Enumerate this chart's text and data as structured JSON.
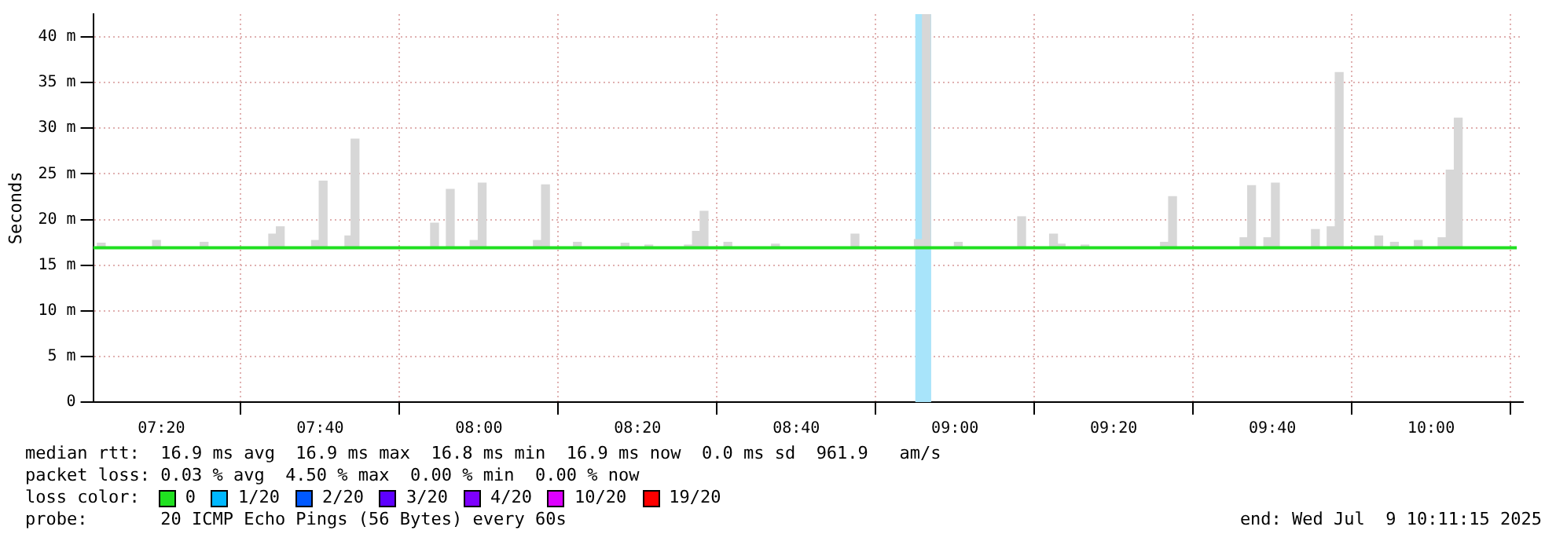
{
  "chart_data": {
    "type": "bar",
    "ylabel": "Seconds",
    "legend_title": "loss color:",
    "legend": "bottom",
    "grid": true,
    "xlim": [
      7.19,
      10.193
    ],
    "xticks": [
      {
        "value": 7.3333,
        "label": "07:20"
      },
      {
        "value": 7.6667,
        "label": "07:40"
      },
      {
        "value": 8,
        "label": "08:00"
      },
      {
        "value": 8.3333,
        "label": "08:20"
      },
      {
        "value": 8.6667,
        "label": "08:40"
      },
      {
        "value": 9,
        "label": "09:00"
      },
      {
        "value": 9.3333,
        "label": "09:20"
      },
      {
        "value": 9.6667,
        "label": "09:40"
      },
      {
        "value": 10,
        "label": "10:00"
      }
    ],
    "ylim": [
      0,
      42.5
    ],
    "yticks": [
      0,
      {
        "value": 5,
        "label": "5 m"
      },
      {
        "value": 10,
        "label": "10 m"
      },
      {
        "value": 15,
        "label": "15 m"
      },
      {
        "value": 20,
        "label": "20 m"
      },
      {
        "value": 25,
        "label": "25 m"
      },
      {
        "value": 30,
        "label": "30 m"
      },
      {
        "value": 35,
        "label": "35 m"
      },
      {
        "value": 40,
        "label": "40 m"
      }
    ],
    "bands": [
      {
        "axis": "x",
        "from": 8.9167,
        "to": 8.95,
        "color": "#a8e4fa"
      }
    ],
    "series": [
      {
        "color": "#d7d7d7",
        "base": [
          16.9,
          16.9,
          16.9,
          16.9,
          16.9,
          16.9,
          16.9,
          16.9,
          16.9,
          16.9,
          16.9,
          16.9,
          16.9,
          16.9,
          16.9,
          16.9,
          16.9,
          16.9,
          16.9,
          16.9,
          16.9,
          16.9,
          16.9,
          16.9,
          16.9,
          16.9,
          16.9,
          16.9,
          16.9,
          16.9,
          16.9,
          16.9,
          16.9,
          16.9,
          16.9,
          16.9,
          16.9,
          16.9,
          16.9,
          16.9,
          16.9,
          16.9,
          16.9,
          16.9,
          16.9,
          16.9
        ],
        "x": [
          7.207,
          7.323,
          7.423,
          7.567,
          7.583,
          7.657,
          7.673,
          7.727,
          7.74,
          7.907,
          7.94,
          7.99,
          8.007,
          8.123,
          8.14,
          8.207,
          8.307,
          8.357,
          8.44,
          8.457,
          8.473,
          8.523,
          8.623,
          8.79,
          8.923,
          8.94,
          9.007,
          9.14,
          9.207,
          9.223,
          9.273,
          9.44,
          9.457,
          9.607,
          9.623,
          9.657,
          9.673,
          9.757,
          9.79,
          9.807,
          9.89,
          9.923,
          9.973,
          10.023,
          10.04,
          10.057
        ],
        "values": [
          0.5,
          0.8,
          0.6,
          1.5,
          2.3,
          0.8,
          7.3,
          1.3,
          11.9,
          2.7,
          6.4,
          0.8,
          7.1,
          0.8,
          6.9,
          0.6,
          0.5,
          0.3,
          0.3,
          1.8,
          4.0,
          0.6,
          0.4,
          1.5,
          0.9,
          25.6,
          0.6,
          3.4,
          1.5,
          0.4,
          0.3,
          0.6,
          5.6,
          1.1,
          6.8,
          1.1,
          7.1,
          2.0,
          2.3,
          19.2,
          1.3,
          0.6,
          0.8,
          1.1,
          8.5,
          14.2
        ]
      },
      {
        "type": "line",
        "name": "0",
        "color": "#20e020",
        "x": [
          7.19,
          10.18
        ],
        "values": [
          16.9,
          16.9
        ]
      },
      {
        "type": "line",
        "name": "1/20",
        "color": "#00b8ff"
      },
      {
        "type": "line",
        "name": "2/20",
        "color": "#0059ff"
      },
      {
        "type": "line",
        "name": "3/20",
        "color": "#5e00ff"
      },
      {
        "type": "line",
        "name": "4/20",
        "color": "#7e00ff"
      },
      {
        "type": "line",
        "name": "10/20",
        "color": "#dd00ff"
      },
      {
        "type": "line",
        "name": "19/20",
        "color": "#ff0000"
      }
    ],
    "annotations": [
      "median rtt:  16.9 ms avg  16.9 ms max  16.8 ms min  16.9 ms now  0.0 ms sd  961.9   am/s",
      "packet loss: 0.03 % avg  4.50 % max  0.00 % min  0.00 % now",
      "probe:       20 ICMP Echo Pings (56 Bytes) every 60s",
      "end: Wed Jul  9 10:11:15 2025"
    ]
  }
}
